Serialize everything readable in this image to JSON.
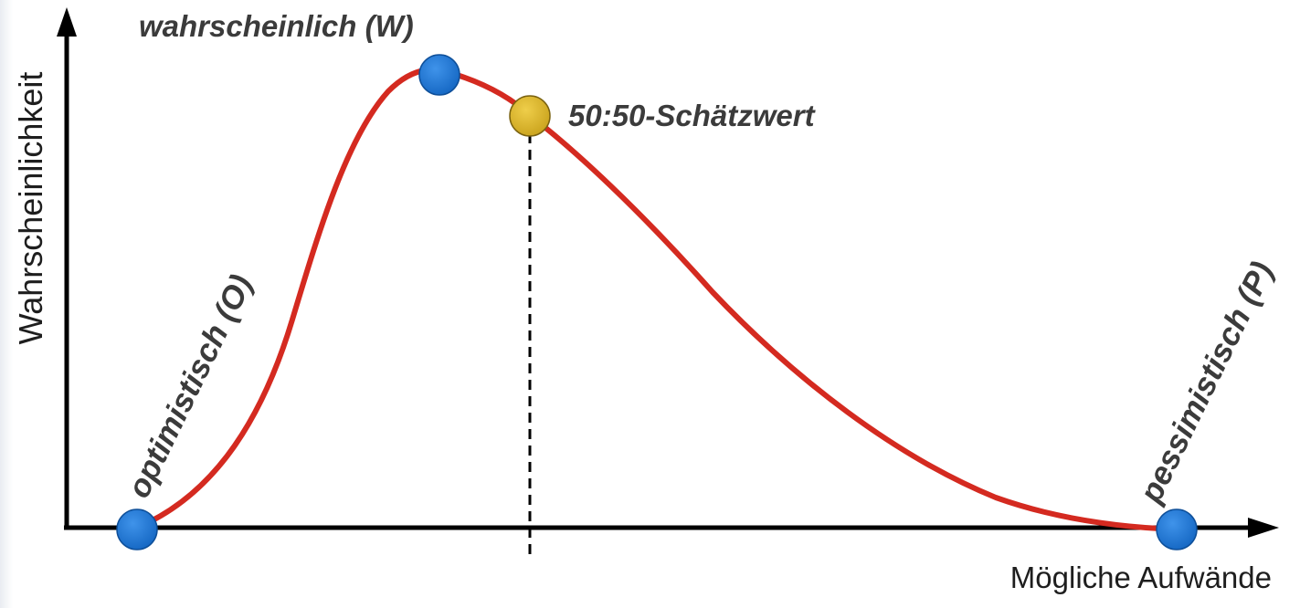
{
  "diagram": {
    "y_axis_label": "Wahrscheinlichkeit",
    "x_axis_label": "Mögliche Aufwände",
    "points": {
      "optimistic": {
        "label": "optimistisch (O)",
        "color": "#1a6fc9"
      },
      "likely": {
        "label": "wahrscheinlich (W)",
        "color": "#1a6fc9"
      },
      "median": {
        "label": "50:50-Schätzwert",
        "color": "#d9b52a"
      },
      "pessimistic": {
        "label": "pessimistisch (P)",
        "color": "#1a6fc9"
      }
    },
    "curve_color": "#d42a20",
    "axis_color": "#000000"
  }
}
